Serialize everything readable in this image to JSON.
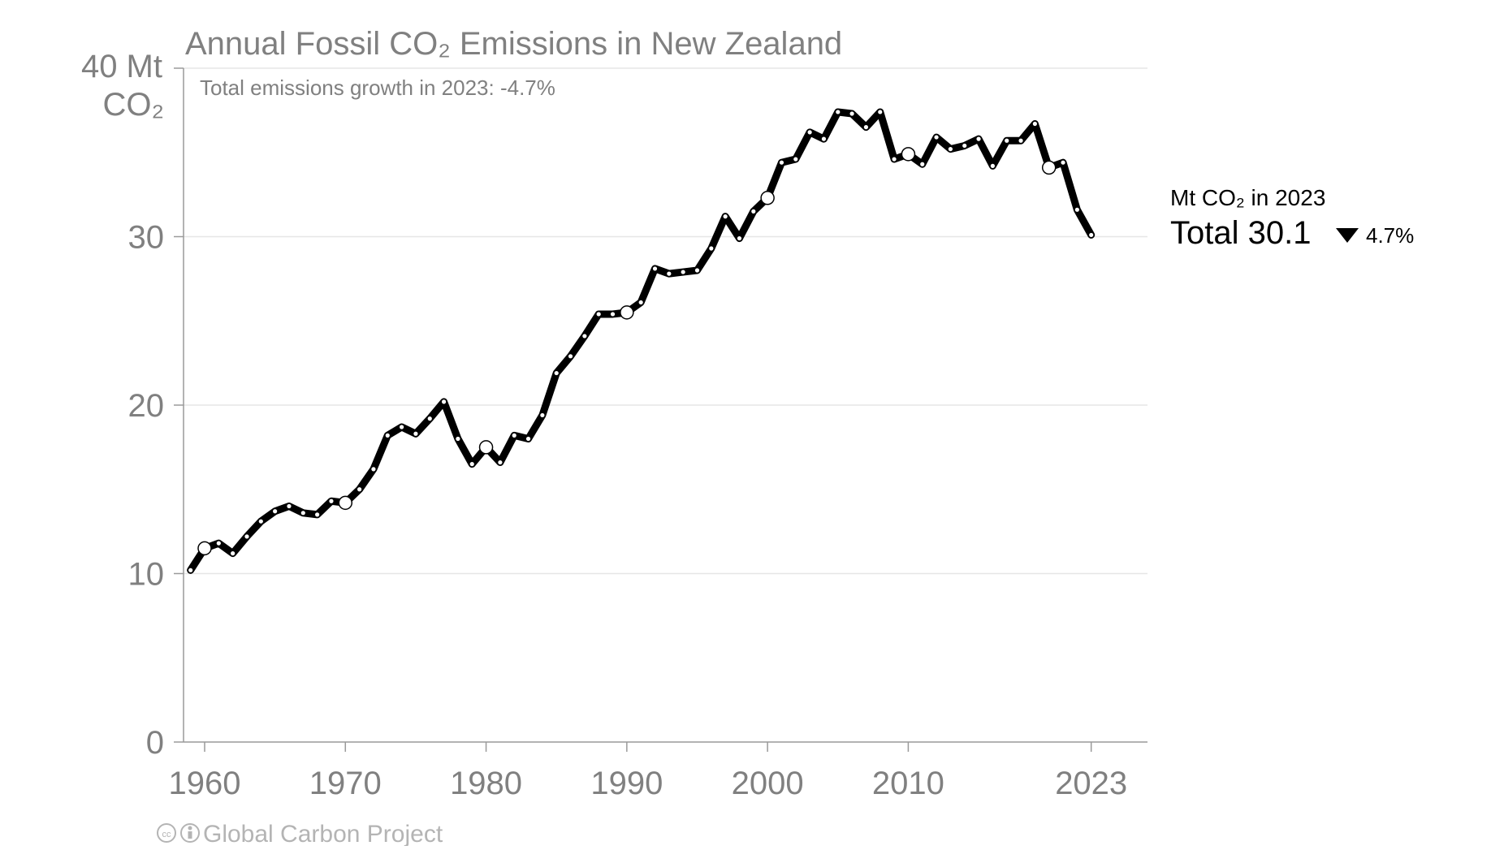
{
  "chart_data": {
    "type": "line",
    "title": "Annual Fossil CO₂ Emissions in New Zealand",
    "subtitle": "Total emissions growth in 2023: -4.7%",
    "ylabel": "40 Mt CO₂",
    "ylabel_lines": [
      "40 Mt",
      "CO₂"
    ],
    "ylim": [
      0,
      40
    ],
    "xlim": [
      1958.5,
      2027
    ],
    "y_ticks": [
      0,
      10,
      20,
      30
    ],
    "x_ticks": [
      1960,
      1970,
      1980,
      1990,
      2000,
      2010,
      2023
    ],
    "grid": true,
    "series": [
      {
        "name": "Total",
        "color": "#000000",
        "x": [
          1959,
          1960,
          1961,
          1962,
          1963,
          1964,
          1965,
          1966,
          1967,
          1968,
          1969,
          1970,
          1971,
          1972,
          1973,
          1974,
          1975,
          1976,
          1977,
          1978,
          1979,
          1980,
          1981,
          1982,
          1983,
          1984,
          1985,
          1986,
          1987,
          1988,
          1989,
          1990,
          1991,
          1992,
          1993,
          1994,
          1995,
          1996,
          1997,
          1998,
          1999,
          2000,
          2001,
          2002,
          2003,
          2004,
          2005,
          2006,
          2007,
          2008,
          2009,
          2010,
          2011,
          2012,
          2013,
          2014,
          2015,
          2016,
          2017,
          2018,
          2019,
          2020,
          2021,
          2022,
          2023
        ],
        "values": [
          10.2,
          11.5,
          11.8,
          11.2,
          12.2,
          13.1,
          13.7,
          14.0,
          13.6,
          13.5,
          14.3,
          14.2,
          15.0,
          16.2,
          18.2,
          18.7,
          18.3,
          19.2,
          20.2,
          18.0,
          16.5,
          17.5,
          16.6,
          18.2,
          18.0,
          19.4,
          21.9,
          22.9,
          24.1,
          25.4,
          25.4,
          25.5,
          26.1,
          28.1,
          27.8,
          27.9,
          28.0,
          29.3,
          31.2,
          29.9,
          31.5,
          32.3,
          34.4,
          34.6,
          36.2,
          35.8,
          37.4,
          37.3,
          36.5,
          37.4,
          34.6,
          34.9,
          34.3,
          35.9,
          35.2,
          35.4,
          35.8,
          34.2,
          35.7,
          35.7,
          36.7,
          34.1,
          34.4,
          31.6,
          30.1
        ],
        "highlight_years": [
          1960,
          1970,
          1980,
          1990,
          2000,
          2010,
          2020
        ]
      }
    ],
    "annotation": {
      "unit_label": "Mt CO₂ in 2023",
      "total_label": "Total 30.1",
      "change_label": "4.7%",
      "direction": "down"
    },
    "footer": "Global Carbon Project"
  }
}
